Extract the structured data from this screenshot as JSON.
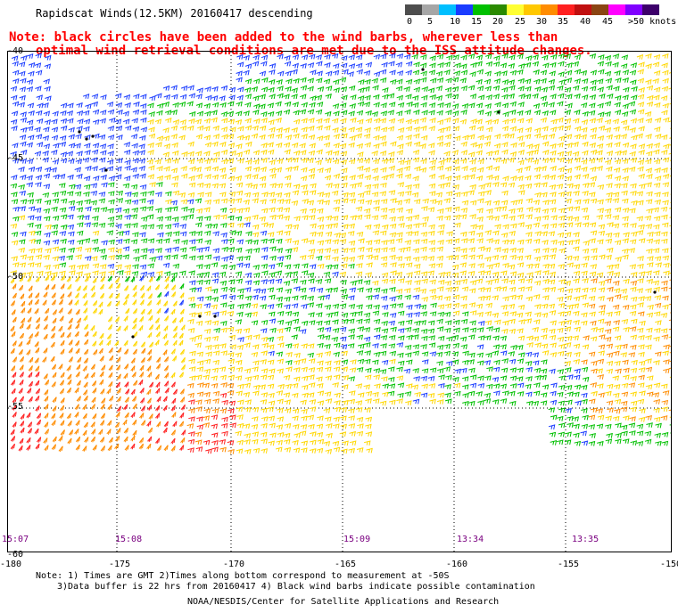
{
  "title": "Rapidscat Winds(12.5KM) 20160417 descending",
  "note_lines": [
    "Note: black circles have been added to the wind barbs, wherever less than",
    "optimal wind retrieval conditions are met due to the ISS attitude changes."
  ],
  "color_scale": {
    "colors": [
      "#4d4d4d",
      "#a6a6a6",
      "#00bfff",
      "#1a3cff",
      "#00c000",
      "#2a8a00",
      "#ffff33",
      "#ffc800",
      "#ff8c00",
      "#ff2020",
      "#c01010",
      "#8b4513",
      "#ff00ff",
      "#8000ff",
      "#3d006b"
    ],
    "labels": [
      "0",
      "5",
      "10",
      "15",
      "20",
      "25",
      "30",
      "35",
      "40",
      "45",
      ">50 knots"
    ]
  },
  "x_ticks": [
    "-180",
    "-175",
    "-170",
    "-165",
    "-160",
    "-155",
    "-150"
  ],
  "y_ticks": [
    "-40",
    "-45",
    "-50",
    "-55",
    "-60"
  ],
  "pass_times": [
    "15:07",
    "15:08",
    "15:09",
    "13:34",
    "13:35"
  ],
  "footer": {
    "line1": "Note: 1) Times are GMT 2)Times along bottom correspond to measurement at -50S",
    "line2": "3)Data buffer is 22 hrs from 20160417 4) Black wind barbs indicate possible contamination",
    "line3": "NOAA/NESDIS/Center for Satellite Applications and Research"
  },
  "map": {
    "lon_range": [
      -180,
      -150
    ],
    "lat_range": [
      -60,
      -40
    ],
    "barb_color_bands": {
      "lt15": "#1a3cff",
      "15to20": "#00c000",
      "20to25": "#ffd700",
      "25to30": "#ff8c00",
      "30to35": "#ff2020"
    }
  }
}
